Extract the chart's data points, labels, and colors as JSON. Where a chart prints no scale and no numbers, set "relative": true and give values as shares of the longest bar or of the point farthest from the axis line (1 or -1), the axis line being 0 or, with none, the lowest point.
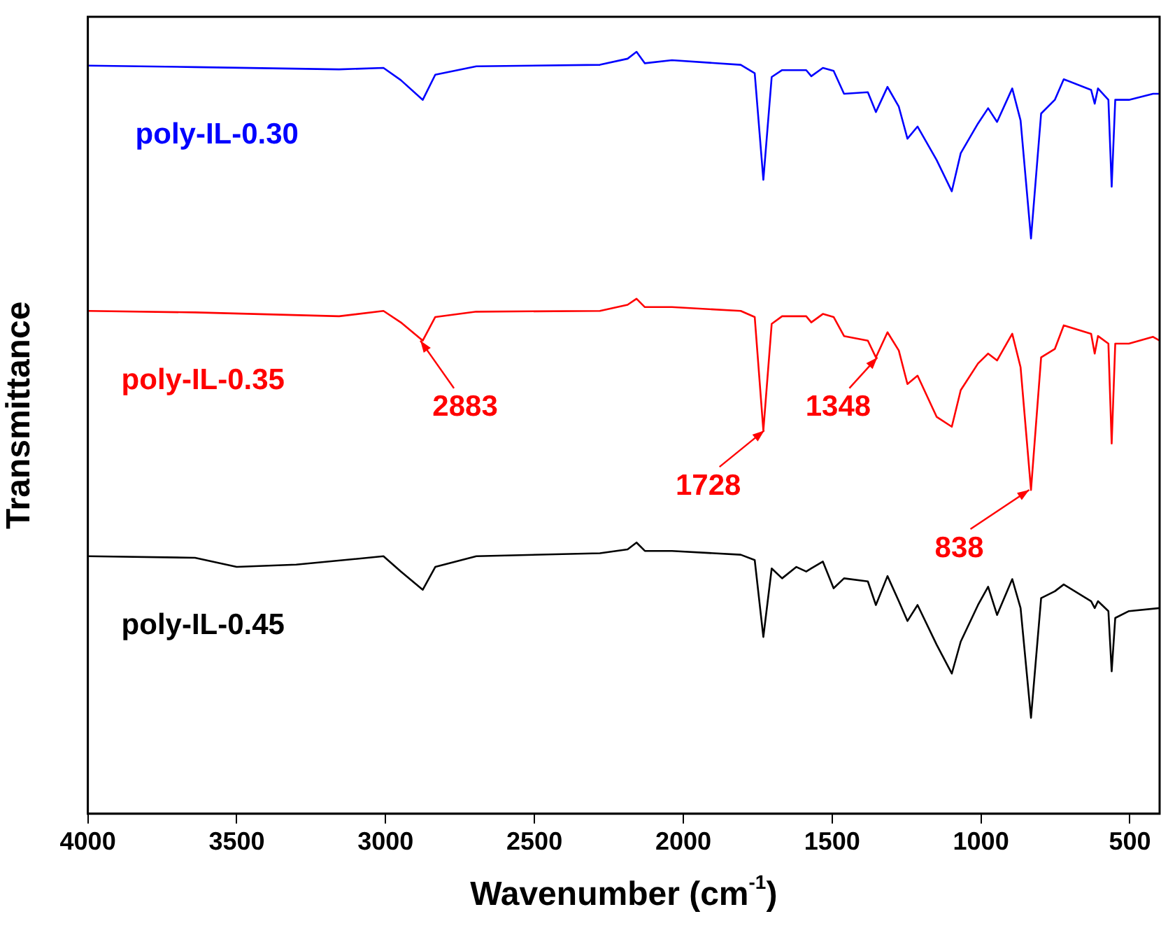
{
  "chart_data": {
    "type": "line",
    "xlabel": "Wavenumber (cm$^{-1}$)",
    "ylabel": "Transmittance",
    "relative": true,
    "legend": false,
    "grid": false,
    "marker": "none",
    "line_style": "solid",
    "xlim": [
      4000,
      400
    ],
    "xticks": [
      4000,
      3500,
      3000,
      2500,
      2000,
      1500,
      1000,
      500
    ],
    "x": [
      4000,
      3640,
      3156,
      3007,
      2949,
      2875,
      2833,
      2695,
      2280,
      2187,
      2157,
      2129,
      2038,
      1807,
      1760,
      1731,
      1703,
      1668,
      1587,
      1570,
      1531,
      1495,
      1460,
      1380,
      1353,
      1314,
      1276,
      1247,
      1213,
      1149,
      1098,
      1068,
      1010,
      976,
      946,
      895,
      867,
      832,
      798,
      752,
      722,
      630,
      618,
      607,
      572,
      561,
      549,
      503,
      422,
      400
    ],
    "series": [
      {
        "name": "poly-IL-0.30",
        "color": "#0000ff",
        "values": [
          0.982,
          0.98,
          0.977,
          0.979,
          0.963,
          0.937,
          0.97,
          0.981,
          0.983,
          0.991,
          1.0,
          0.985,
          0.989,
          0.983,
          0.972,
          0.832,
          0.967,
          0.976,
          0.976,
          0.968,
          0.979,
          0.975,
          0.945,
          0.947,
          0.921,
          0.954,
          0.928,
          0.886,
          0.902,
          0.858,
          0.817,
          0.867,
          0.906,
          0.926,
          0.908,
          0.952,
          0.91,
          0.755,
          0.919,
          0.937,
          0.964,
          0.95,
          0.932,
          0.952,
          0.937,
          0.823,
          0.937,
          0.937,
          0.945,
          0.945
        ]
      },
      {
        "name": "poly-IL-0.35",
        "color": "#ff0000",
        "values": [
          0.66,
          0.658,
          0.653,
          0.66,
          0.645,
          0.621,
          0.652,
          0.659,
          0.66,
          0.668,
          0.676,
          0.665,
          0.665,
          0.66,
          0.652,
          0.503,
          0.643,
          0.653,
          0.653,
          0.645,
          0.656,
          0.652,
          0.627,
          0.621,
          0.599,
          0.632,
          0.608,
          0.564,
          0.575,
          0.521,
          0.508,
          0.556,
          0.591,
          0.604,
          0.595,
          0.63,
          0.586,
          0.425,
          0.599,
          0.61,
          0.641,
          0.63,
          0.604,
          0.627,
          0.617,
          0.486,
          0.617,
          0.617,
          0.626,
          0.621
        ]
      },
      {
        "name": "poly-IL-0.45",
        "color": "#000000",
        "x": [
          4000,
          3640,
          3500,
          3300,
          3007,
          2949,
          2875,
          2833,
          2695,
          2280,
          2187,
          2157,
          2129,
          2038,
          1807,
          1760,
          1731,
          1703,
          1668,
          1620,
          1587,
          1570,
          1531,
          1495,
          1460,
          1380,
          1353,
          1314,
          1276,
          1247,
          1213,
          1149,
          1098,
          1068,
          1010,
          976,
          946,
          895,
          867,
          832,
          798,
          752,
          722,
          630,
          618,
          607,
          572,
          561,
          549,
          503,
          400
        ],
        "values": [
          0.338,
          0.336,
          0.324,
          0.327,
          0.338,
          0.318,
          0.294,
          0.324,
          0.338,
          0.342,
          0.347,
          0.356,
          0.345,
          0.345,
          0.34,
          0.333,
          0.232,
          0.322,
          0.309,
          0.324,
          0.318,
          0.322,
          0.331,
          0.296,
          0.309,
          0.305,
          0.274,
          0.312,
          0.279,
          0.253,
          0.274,
          0.222,
          0.184,
          0.226,
          0.274,
          0.298,
          0.261,
          0.308,
          0.27,
          0.126,
          0.283,
          0.292,
          0.301,
          0.279,
          0.27,
          0.279,
          0.266,
          0.187,
          0.257,
          0.266,
          0.27
        ]
      }
    ],
    "annotations": [
      {
        "text": "2883",
        "x": 2883,
        "y": 0.621
      },
      {
        "text": "1728",
        "x": 1728,
        "y": 0.503
      },
      {
        "text": "1348",
        "x": 1348,
        "y": 0.599
      },
      {
        "text": "838",
        "x": 838,
        "y": 0.425
      }
    ]
  }
}
